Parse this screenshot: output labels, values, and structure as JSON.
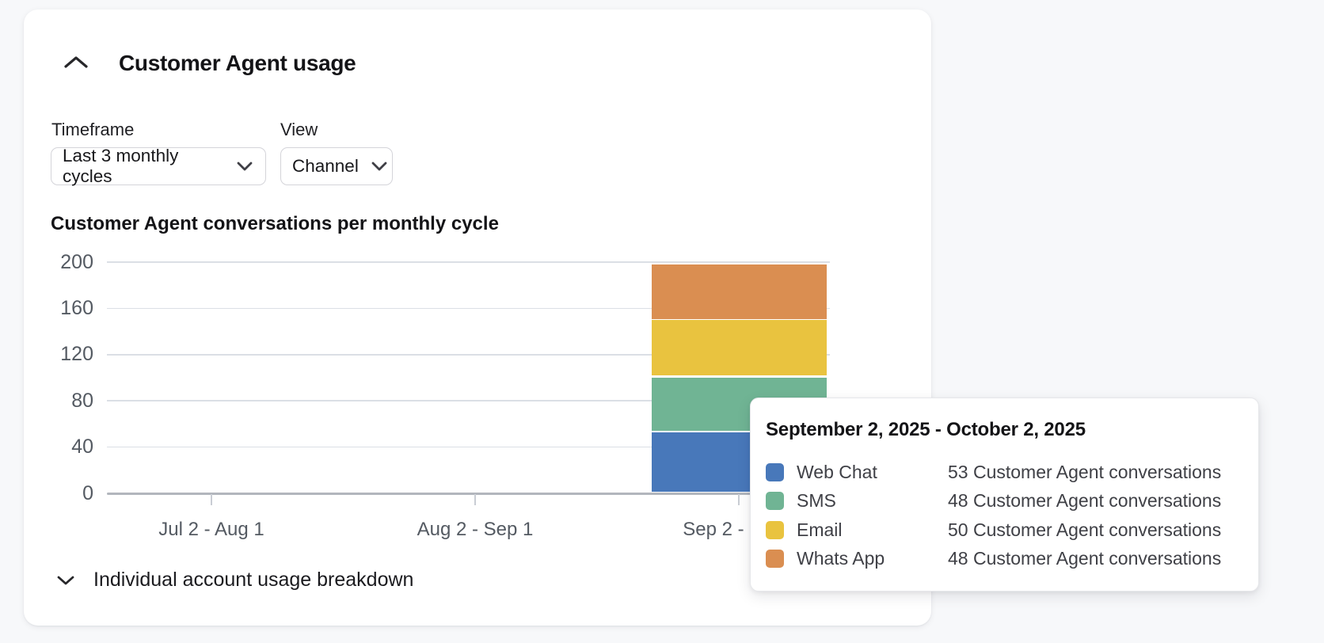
{
  "header": {
    "title": "Customer Agent usage"
  },
  "controls": {
    "timeframe": {
      "label": "Timeframe",
      "value": "Last 3 monthly cycles"
    },
    "view": {
      "label": "View",
      "value": "Channel"
    }
  },
  "chart": {
    "title": "Customer Agent conversations per monthly cycle"
  },
  "chart_data": {
    "type": "bar",
    "stacked": true,
    "title": "Customer Agent conversations per monthly cycle",
    "categories": [
      "Jul 2 - Aug 1",
      "Aug 2 - Sep 1",
      "Sep 2 - Oct 2"
    ],
    "series": [
      {
        "name": "Web Chat",
        "color": "#4878ba",
        "values": [
          0,
          0,
          53
        ]
      },
      {
        "name": "SMS",
        "color": "#70b494",
        "values": [
          0,
          0,
          48
        ]
      },
      {
        "name": "Email",
        "color": "#e9c33f",
        "values": [
          0,
          0,
          50
        ]
      },
      {
        "name": "Whats App",
        "color": "#da8e51",
        "values": [
          0,
          0,
          48
        ]
      }
    ],
    "xlabel": "",
    "ylabel": "",
    "ylim": [
      0,
      200
    ],
    "yticks": [
      0,
      40,
      80,
      120,
      160,
      200
    ],
    "grid": true,
    "legend_position": "tooltip"
  },
  "tooltip": {
    "title": "September 2, 2025 - October 2, 2025",
    "rows": [
      {
        "label": "Web Chat",
        "color": "#4878ba",
        "value": "53 Customer Agent conversations"
      },
      {
        "label": "SMS",
        "color": "#70b494",
        "value": "48 Customer Agent conversations"
      },
      {
        "label": "Email",
        "color": "#e9c33f",
        "value": "50 Customer Agent conversations"
      },
      {
        "label": "Whats App",
        "color": "#da8e51",
        "value": "48 Customer Agent conversations"
      }
    ]
  },
  "breakdown": {
    "label": "Individual account usage breakdown"
  },
  "icons": {
    "header_collapse": "chevron-up-icon",
    "select_dropdown": "chevron-down-icon",
    "breakdown_expand": "chevron-down-icon"
  },
  "colors": {
    "page_bg": "#f7f8fa",
    "card_bg": "#ffffff",
    "web_chat": "#4878ba",
    "sms": "#70b494",
    "email": "#e9c33f",
    "whats_app": "#da8e51",
    "gridline": "#dbdfe5",
    "axis_line": "#b2b6bd",
    "axis_text": "#545a62"
  }
}
